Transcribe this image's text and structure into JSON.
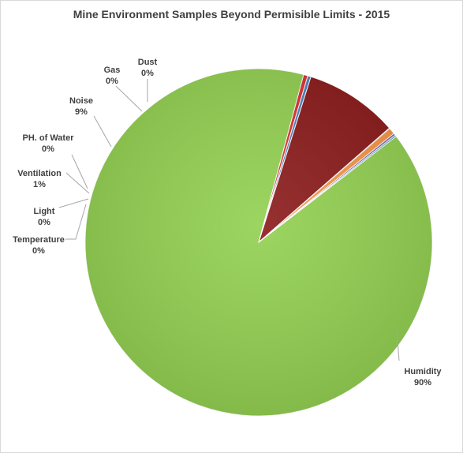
{
  "chart_data": {
    "type": "pie",
    "title": "Mine Environment Samples Beyond Permisible Limits - 2015",
    "slices": [
      {
        "name": "Dust",
        "value": 0.4,
        "label": "0%",
        "color": "#e03030"
      },
      {
        "name": "Gas",
        "value": 0.3,
        "label": "0%",
        "color": "#4f81bd"
      },
      {
        "name": "Noise",
        "value": 8.7,
        "label": "9%",
        "color": "#8b1a1a"
      },
      {
        "name": "PH. of Water",
        "value": 0.05,
        "label": "0%",
        "color": "#9bbb59"
      },
      {
        "name": "Ventilation",
        "value": 0.6,
        "label": "1%",
        "color": "#f79646"
      },
      {
        "name": "Light",
        "value": 0.2,
        "label": "0%",
        "color": "#8064a2"
      },
      {
        "name": "Temperature",
        "value": 0.15,
        "label": "0%",
        "color": "#4bacc6"
      },
      {
        "name": "Humidity",
        "value": 89.6,
        "label": "90%",
        "color": "#92d050"
      }
    ],
    "legend": "none",
    "data_labels": "outside-with-leader-lines"
  }
}
